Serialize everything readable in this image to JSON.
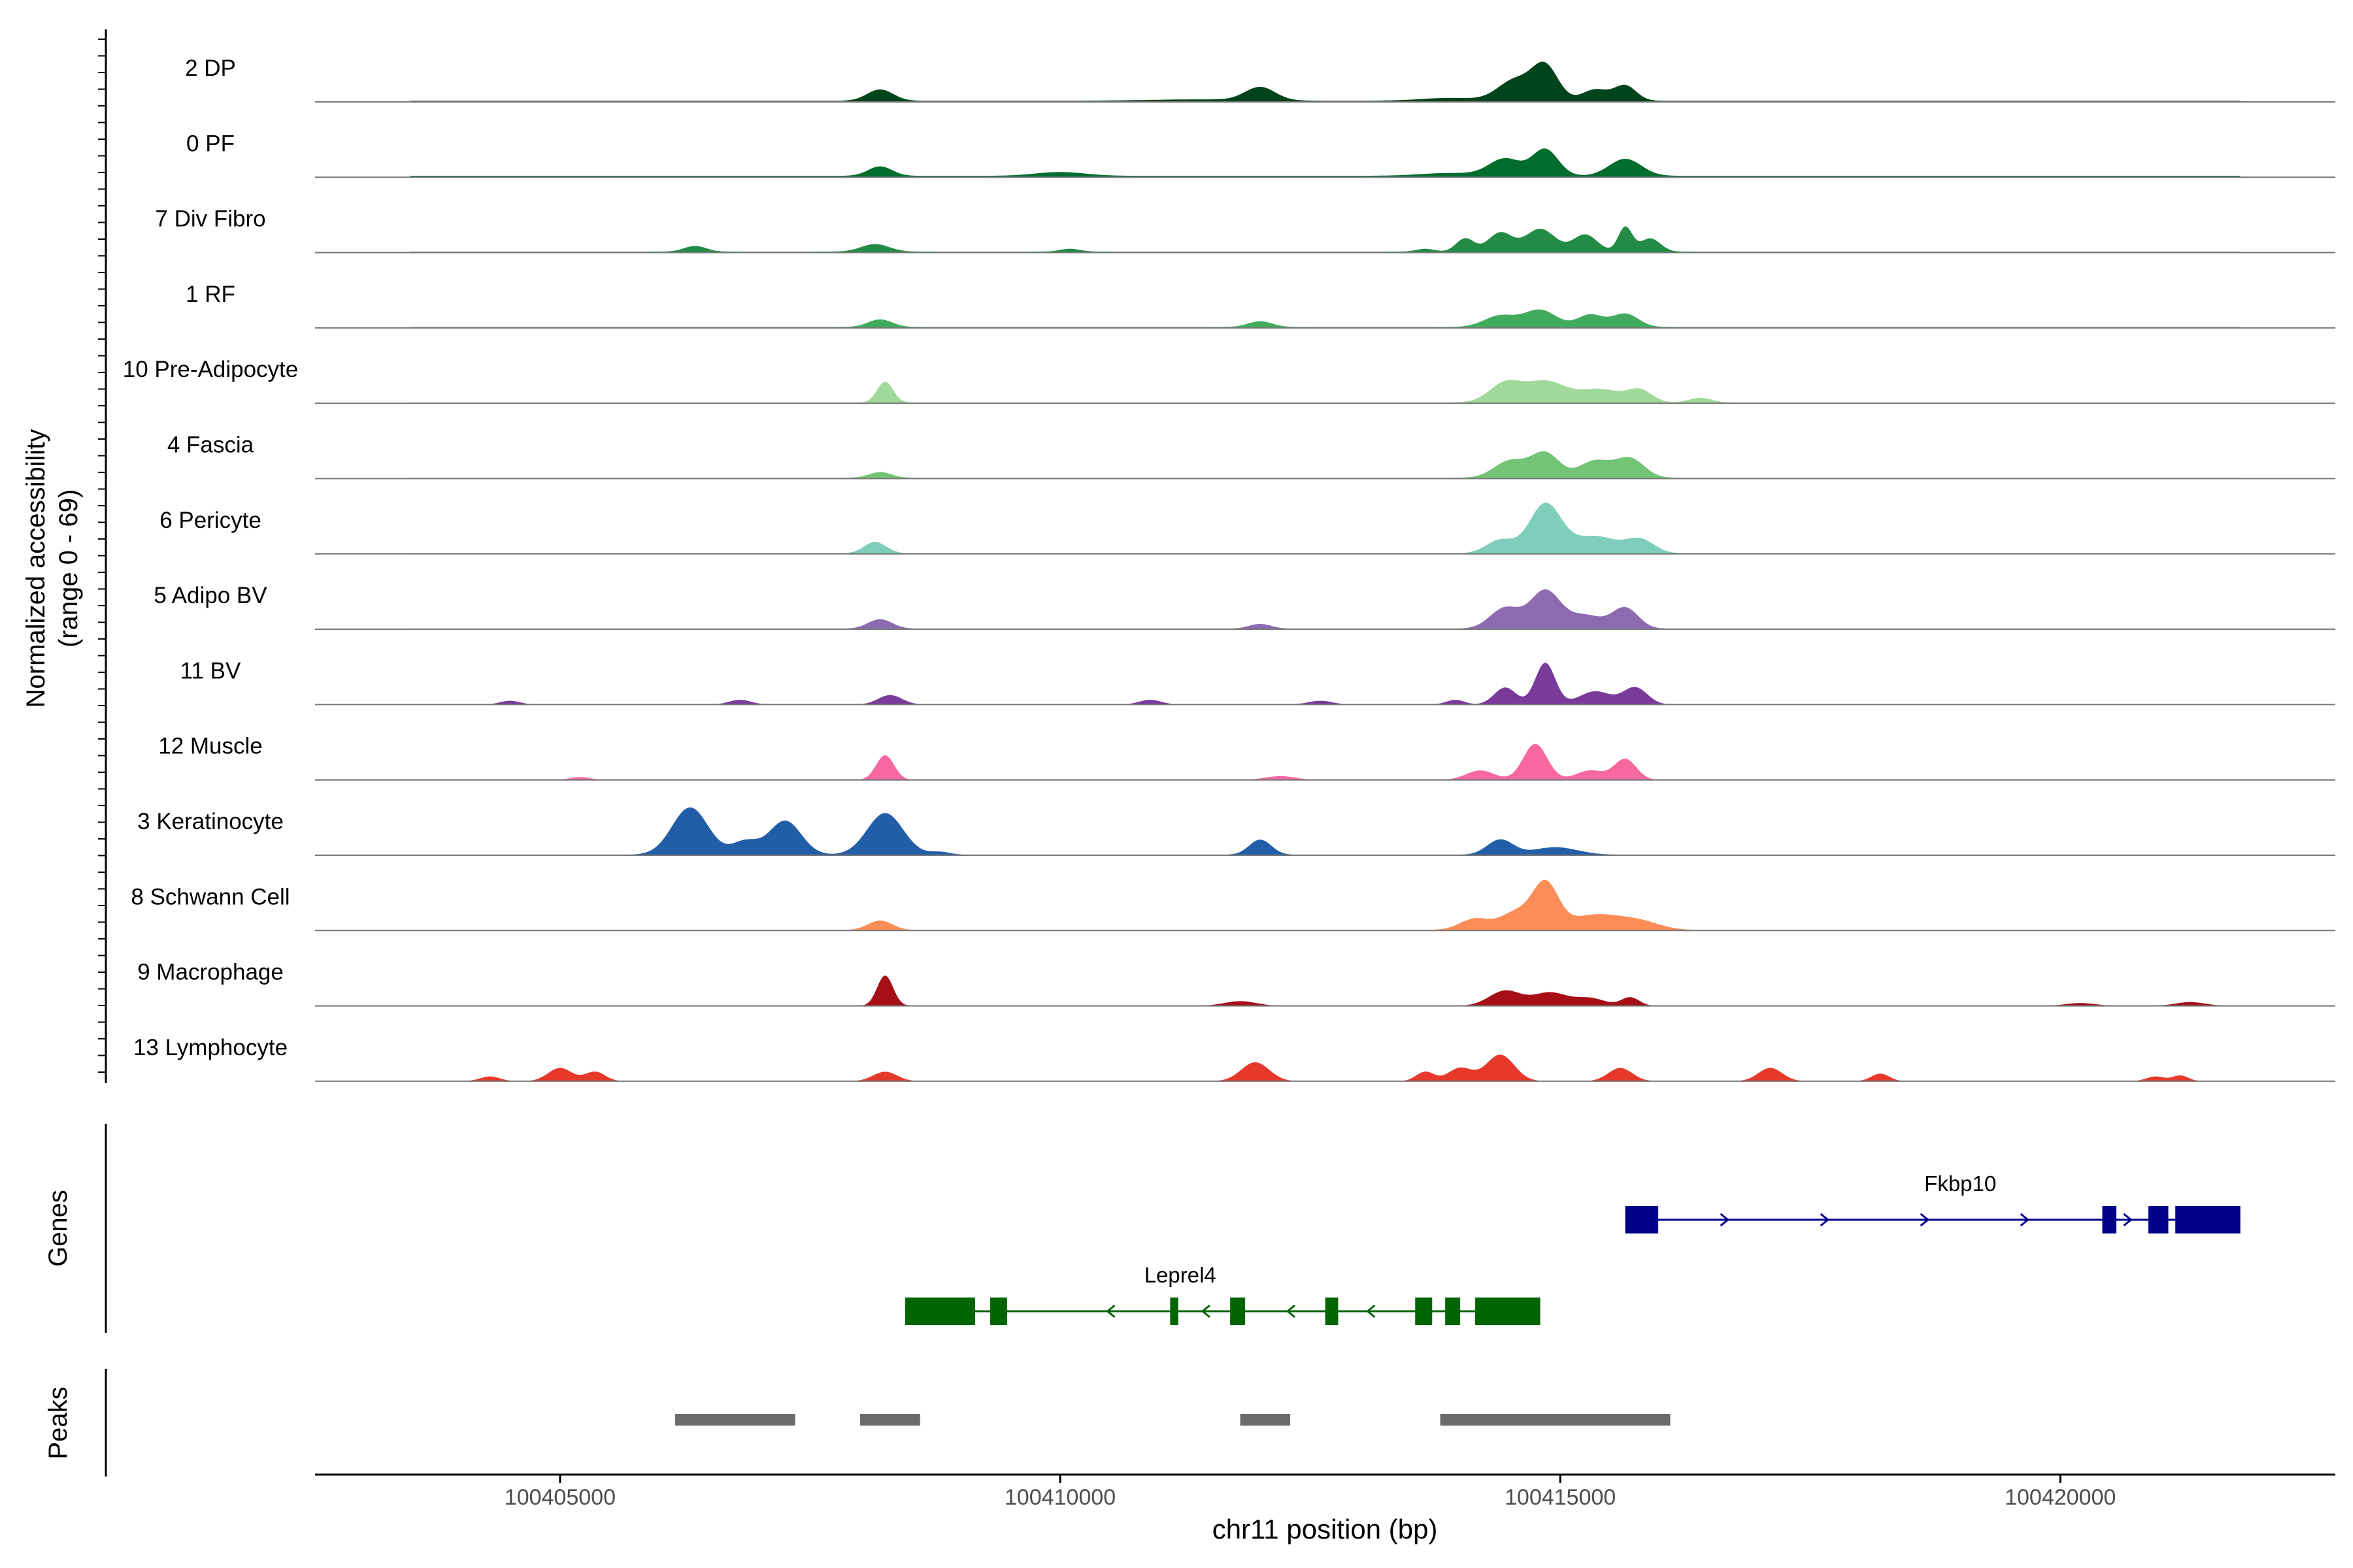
{
  "chart_data": {
    "type": "area",
    "title": "",
    "ylabel": "Normalized accessibility",
    "ylabel_sub": "(range 0 - 69)",
    "xlabel": "chr11 position (bp)",
    "y_range": [
      0,
      69
    ],
    "xlim": [
      100402550,
      100422750
    ],
    "x_ticks": [
      {
        "value": 100405000,
        "label": "100405000"
      },
      {
        "value": 100410000,
        "label": "100410000"
      },
      {
        "value": 100415000,
        "label": "100415000"
      },
      {
        "value": 100420000,
        "label": "100420000"
      }
    ],
    "tracks": [
      {
        "name": "2 DP",
        "color": "#00441b",
        "baseline": 1.2,
        "peaks": [
          [
            100408200,
            12,
            130
          ],
          [
            100412000,
            14,
            150
          ],
          [
            100414550,
            22,
            170
          ],
          [
            100414850,
            36,
            130
          ],
          [
            100415350,
            12,
            130
          ],
          [
            100415650,
            16,
            110
          ],
          [
            100411400,
            1.5,
            500
          ],
          [
            100413900,
            3,
            300
          ]
        ]
      },
      {
        "name": "0 PF",
        "color": "#006d2c",
        "baseline": 1.5,
        "peaks": [
          [
            100408200,
            10,
            120
          ],
          [
            100410000,
            4,
            250
          ],
          [
            100414450,
            18,
            160
          ],
          [
            100414850,
            28,
            130
          ],
          [
            100415650,
            18,
            160
          ],
          [
            100413900,
            3,
            300
          ]
        ]
      },
      {
        "name": "7 Div Fibro",
        "color": "#238b45",
        "baseline": 1.0,
        "peaks": [
          [
            100406350,
            6,
            110
          ],
          [
            100408150,
            8,
            140
          ],
          [
            100410100,
            3,
            100
          ],
          [
            100414050,
            14,
            90
          ],
          [
            100414400,
            20,
            120
          ],
          [
            100414800,
            24,
            150
          ],
          [
            100415250,
            18,
            120
          ],
          [
            100415650,
            26,
            70
          ],
          [
            100415900,
            14,
            100
          ],
          [
            100413650,
            3,
            90
          ]
        ]
      },
      {
        "name": "1 RF",
        "color": "#41ab5d",
        "baseline": 1.0,
        "peaks": [
          [
            100408200,
            8,
            120
          ],
          [
            100412000,
            6,
            120
          ],
          [
            100414400,
            12,
            160
          ],
          [
            100414800,
            18,
            160
          ],
          [
            100415300,
            13,
            130
          ],
          [
            100415650,
            14,
            130
          ]
        ]
      },
      {
        "name": "10 Pre-Adipocyte",
        "color": "#a1d99b",
        "baseline": 0.8,
        "peaks": [
          [
            100408250,
            22,
            80
          ],
          [
            100414450,
            20,
            160
          ],
          [
            100414850,
            22,
            200
          ],
          [
            100415400,
            14,
            220
          ],
          [
            100415800,
            12,
            120
          ],
          [
            100416400,
            5,
            110
          ]
        ]
      },
      {
        "name": "4 Fascia",
        "color": "#74c476",
        "baseline": 0.9,
        "peaks": [
          [
            100408200,
            6,
            110
          ],
          [
            100414500,
            18,
            160
          ],
          [
            100414850,
            26,
            140
          ],
          [
            100415350,
            18,
            160
          ],
          [
            100415700,
            20,
            140
          ]
        ]
      },
      {
        "name": "6 Pericyte",
        "color": "#7fcdbb",
        "baseline": 0.6,
        "peaks": [
          [
            100408150,
            12,
            110
          ],
          [
            100414400,
            14,
            140
          ],
          [
            100414850,
            52,
            160
          ],
          [
            100415350,
            18,
            220
          ],
          [
            100415800,
            14,
            140
          ]
        ]
      },
      {
        "name": "5 Adipo BV",
        "color": "#8c6bb1",
        "baseline": 0.6,
        "peaks": [
          [
            100408200,
            10,
            120
          ],
          [
            100412000,
            5,
            110
          ],
          [
            100414450,
            22,
            150
          ],
          [
            100414850,
            40,
            150
          ],
          [
            100415250,
            14,
            170
          ],
          [
            100415650,
            22,
            130
          ]
        ]
      },
      {
        "name": "11 BV",
        "color": "#7a3a9a",
        "baseline": 0,
        "peaks": [
          [
            100408300,
            10,
            120
          ],
          [
            100410900,
            5,
            110
          ],
          [
            100413950,
            5,
            90
          ],
          [
            100414450,
            18,
            110
          ],
          [
            100414850,
            44,
            100
          ],
          [
            100415350,
            14,
            160
          ],
          [
            100415750,
            18,
            120
          ],
          [
            100404500,
            4,
            100
          ],
          [
            100406800,
            5,
            110
          ],
          [
            100412600,
            4,
            120
          ]
        ]
      },
      {
        "name": "12 Muscle",
        "color": "#f768a1",
        "baseline": 0,
        "peaks": [
          [
            100408250,
            26,
            90
          ],
          [
            100414200,
            10,
            140
          ],
          [
            100414750,
            38,
            120
          ],
          [
            100415300,
            10,
            140
          ],
          [
            100415650,
            22,
            110
          ],
          [
            100405200,
            3,
            100
          ],
          [
            100412200,
            4,
            150
          ]
        ]
      },
      {
        "name": "3 Keratinocyte",
        "color": "#225ea8",
        "baseline": 0.5,
        "peaks": [
          [
            100406300,
            50,
            180
          ],
          [
            100406850,
            14,
            130
          ],
          [
            100407250,
            36,
            160
          ],
          [
            100408250,
            44,
            180
          ],
          [
            100412000,
            16,
            110
          ],
          [
            100414400,
            16,
            130
          ],
          [
            100414950,
            8,
            220
          ],
          [
            100408800,
            3,
            100
          ]
        ]
      },
      {
        "name": "8 Schwann Cell",
        "color": "#fc8d59",
        "baseline": 0.6,
        "peaks": [
          [
            100408200,
            10,
            120
          ],
          [
            100414150,
            12,
            150
          ],
          [
            100414550,
            18,
            150
          ],
          [
            100414850,
            48,
            130
          ],
          [
            100415350,
            16,
            260
          ],
          [
            100415800,
            8,
            200
          ]
        ]
      },
      {
        "name": "9 Macrophage",
        "color": "#a50f15",
        "baseline": 0,
        "peaks": [
          [
            100408250,
            32,
            80
          ],
          [
            100414450,
            16,
            160
          ],
          [
            100414900,
            14,
            170
          ],
          [
            100415300,
            8,
            150
          ],
          [
            100415700,
            9,
            90
          ],
          [
            100411800,
            5,
            160
          ],
          [
            100421300,
            4,
            150
          ],
          [
            100420200,
            3,
            150
          ]
        ]
      },
      {
        "name": "13 Lymphocyte",
        "color": "#e6392b",
        "baseline": 0,
        "peaks": [
          [
            100405000,
            14,
            120
          ],
          [
            100405350,
            10,
            100
          ],
          [
            100404300,
            5,
            100
          ],
          [
            100408250,
            10,
            120
          ],
          [
            100411950,
            20,
            140
          ],
          [
            100414400,
            28,
            140
          ],
          [
            100414000,
            14,
            120
          ],
          [
            100415600,
            14,
            120
          ],
          [
            100413650,
            10,
            90
          ],
          [
            100417100,
            14,
            120
          ],
          [
            100418200,
            8,
            90
          ],
          [
            100420950,
            5,
            90
          ],
          [
            100421200,
            6,
            80
          ]
        ]
      }
    ],
    "genes": [
      {
        "name": "Fkbp10",
        "color": "#00008b",
        "strand": "+",
        "start": 100415650,
        "end": 100421800,
        "label_pos": 100419000,
        "label_row": "upper",
        "exons": [
          [
            100415650,
            100415980
          ],
          [
            100420420,
            100420560
          ],
          [
            100420880,
            100421080
          ],
          [
            100421150,
            100421800
          ]
        ],
        "arrows": [
          100415700,
          100416650,
          100417650,
          100418650,
          100419650,
          100420680
        ]
      },
      {
        "name": "Leprel4",
        "color": "#006400",
        "strand": "-",
        "start": 100408450,
        "end": 100414800,
        "label_pos": 100411200,
        "label_row": "lower",
        "exons": [
          [
            100408450,
            100409150
          ],
          [
            100409300,
            100409470
          ],
          [
            100411100,
            100411180
          ],
          [
            100411700,
            100411850
          ],
          [
            100412650,
            100412780
          ],
          [
            100413550,
            100413720
          ],
          [
            100413850,
            100414000
          ],
          [
            100414150,
            100414800
          ]
        ],
        "arrows": [
          100410500,
          100411450,
          100412300,
          100413100
        ]
      }
    ],
    "peaks_track": [
      [
        100406150,
        100407350
      ],
      [
        100408000,
        100408600
      ],
      [
        100411800,
        100412300
      ],
      [
        100413800,
        100416100
      ]
    ],
    "panel_labels": {
      "genes": "Genes",
      "peaks": "Peaks"
    }
  }
}
